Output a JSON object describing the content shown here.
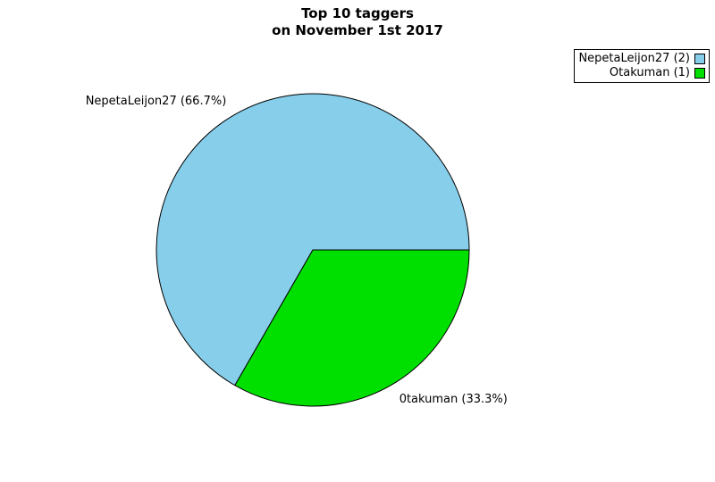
{
  "title": {
    "line1": "Top 10 taggers",
    "line2": "on November 1st 2017"
  },
  "chart_data": {
    "type": "pie",
    "title": "Top 10 taggers on November 1st 2017",
    "legend_position": "top-right",
    "start_angle_deg": 0,
    "direction": "counterclockwise",
    "slices": [
      {
        "name": "NepetaLeijon27",
        "count": 2,
        "pct": 66.7,
        "label": "NepetaLeijon27 (66.7%)",
        "legend_label": "NepetaLeijon27 (2)",
        "color": "#87CEEB"
      },
      {
        "name": "Otakuman",
        "count": 1,
        "pct": 33.3,
        "label": "0takuman (33.3%)",
        "legend_label": "Otakuman (1)",
        "color": "#00E000"
      }
    ]
  }
}
